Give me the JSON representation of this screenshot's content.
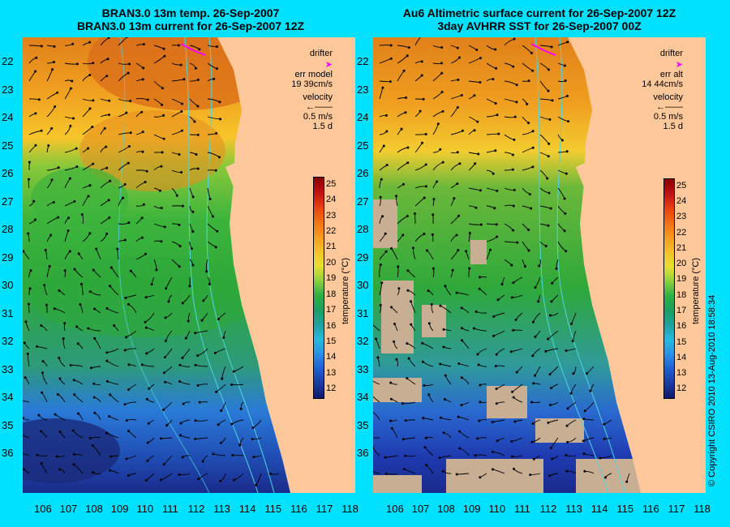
{
  "left_panel": {
    "title_line1": "BRAN3.0 13m temp. 26-Sep-2007",
    "title_line2": "BRAN3.0 13m current for 26-Sep-2007 12Z",
    "legend": {
      "drifter": "drifter",
      "err": "err model",
      "err_value": "19 39cm/s",
      "velocity": "velocity",
      "speed": "0.5 m/s",
      "duration": "1.5 d"
    }
  },
  "right_panel": {
    "title_line1": "Au6 Altimetric surface current for 26-Sep-2007 12Z",
    "title_line2": "3day AVHRR SST for 26-Sep-2007 00Z",
    "legend": {
      "drifter": "drifter",
      "err": "err alt",
      "err_value": "14 44cm/s",
      "velocity": "velocity",
      "speed": "0.5 m/s",
      "duration": "1.5 d"
    }
  },
  "latitude_labels": [
    "22",
    "23",
    "24",
    "25",
    "26",
    "27",
    "28",
    "29",
    "30",
    "31",
    "32",
    "33",
    "34",
    "35",
    "36"
  ],
  "longitude_labels": [
    "106",
    "107",
    "108",
    "109",
    "110",
    "111",
    "112",
    "113",
    "114",
    "115",
    "116",
    "117",
    "118"
  ],
  "colorbar": {
    "title": "temperature (°C)",
    "ticks": [
      "25",
      "24",
      "23",
      "22",
      "21",
      "20",
      "19",
      "18",
      "17",
      "16",
      "15",
      "14",
      "13",
      "12"
    ],
    "min": 11.5,
    "max": 25.5
  },
  "copyright": "© Copyright CSIRO 2010   13-Aug-2010 18:58:34",
  "colors": {
    "background": "#00e0ff",
    "land": "#ffc89a",
    "contour": "#4fd6e0",
    "drifter": "#ff00ff",
    "arrow": "#000000"
  }
}
